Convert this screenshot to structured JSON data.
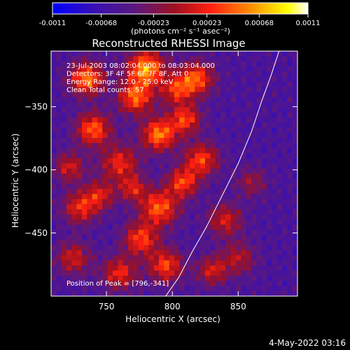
{
  "chart_data": {
    "type": "heatmap",
    "title": "Reconstructed RHESSI Image",
    "colorbar": {
      "unit_label": "(photons cm⁻² s⁻¹ asec⁻²)",
      "ticks": [
        "-0.0011",
        "-0.00068",
        "-0.00023",
        "0.00023",
        "0.00068",
        "0.0011"
      ],
      "range": [
        -0.0011,
        0.0011
      ],
      "colormap": [
        "#0000ff",
        "#3a10b0",
        "#5a1880",
        "#a01020",
        "#ff2010",
        "#ff9000",
        "#ffff00",
        "#ffffff"
      ]
    },
    "xlabel": "Heliocentric X (arcsec)",
    "ylabel": "Heliocentric Y (arcsec)",
    "xlim": [
      708,
      895
    ],
    "ylim": [
      -500,
      -306
    ],
    "xticks": [
      750,
      800,
      850
    ],
    "yticks": [
      -350,
      -400,
      -450
    ],
    "annotations": [
      "23-Jul-2003 08:02:04.000 to 08:03:04.000",
      "Detectors: 3F 4F 5F 6F 7F 8F, Att 0",
      "Energy Range: 12.0 - 25.0 keV",
      "Clean    Total counts: 57"
    ],
    "peak_label": "Position of Peak = [796,-341]",
    "peak": [
      796,
      -341
    ],
    "limb_curve": [
      [
        795,
        -500
      ],
      [
        805,
        -485
      ],
      [
        815,
        -465
      ],
      [
        826,
        -445
      ],
      [
        838,
        -420
      ],
      [
        850,
        -395
      ],
      [
        860,
        -370
      ],
      [
        868,
        -345
      ],
      [
        875,
        -325
      ],
      [
        881,
        -306
      ]
    ]
  },
  "footer": {
    "date": "4-May-2022 03:16"
  }
}
